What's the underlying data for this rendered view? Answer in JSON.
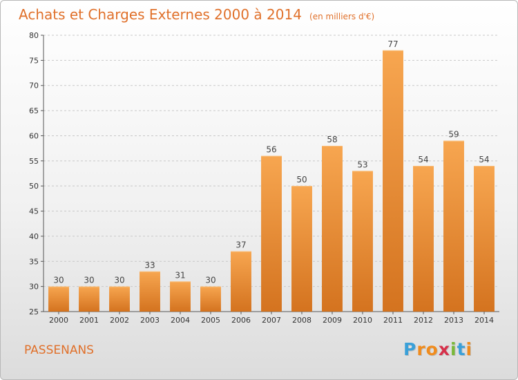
{
  "header": {
    "title": "Achats et Charges Externes 2000 à 2014",
    "subtitle": "(en milliers d'€)"
  },
  "footer": {
    "place": "PASSENANS",
    "logo": {
      "text": "Proxiti",
      "letters": [
        {
          "char": "P",
          "color": "#3aa0d8"
        },
        {
          "char": "r",
          "color": "#f08c1e"
        },
        {
          "char": "o",
          "color": "#f08c1e"
        },
        {
          "char": "x",
          "color": "#d6304a"
        },
        {
          "char": "i",
          "color": "#7ab83a"
        },
        {
          "char": "t",
          "color": "#3aa0d8"
        },
        {
          "char": "i",
          "color": "#f08c1e"
        }
      ]
    }
  },
  "colors": {
    "accent": "#e0702a",
    "bar_top": "#f7a650",
    "bar_bottom": "#d4731f",
    "grid": "#c8c8c8"
  },
  "chart_data": {
    "type": "bar",
    "title": "Achats et Charges Externes 2000 à 2014",
    "subtitle": "(en milliers d'€)",
    "categories": [
      "2000",
      "2001",
      "2002",
      "2003",
      "2004",
      "2005",
      "2006",
      "2007",
      "2008",
      "2009",
      "2010",
      "2011",
      "2012",
      "2013",
      "2014"
    ],
    "values": [
      30,
      30,
      30,
      33,
      31,
      30,
      37,
      56,
      50,
      58,
      53,
      77,
      54,
      59,
      54
    ],
    "data_labels": [
      "30",
      "30",
      "30",
      "33",
      "31",
      "30",
      "37",
      "56",
      "50",
      "58",
      "53",
      "77",
      "54",
      "59",
      "54"
    ],
    "ylim": [
      25,
      80
    ],
    "yticks": [
      25,
      30,
      35,
      40,
      45,
      50,
      55,
      60,
      65,
      70,
      75,
      80
    ],
    "xlabel": "",
    "ylabel": "",
    "grid": true
  }
}
